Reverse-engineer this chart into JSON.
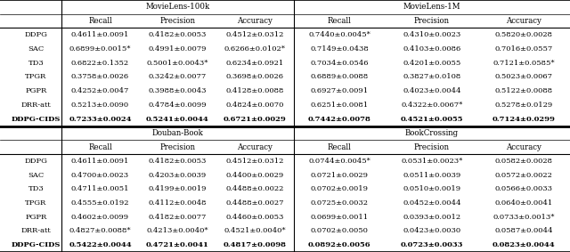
{
  "top_left_header": "MovieLens-100k",
  "top_right_header": "MovieLens-1M",
  "bottom_left_header": "Douban-Book",
  "bottom_right_header": "BookCrossing",
  "col_headers": [
    "Recall",
    "Precision",
    "Accuracy"
  ],
  "row_labels": [
    "DDPG",
    "SAC",
    "TD3",
    "TPGR",
    "PGPR",
    "DRR-att",
    "DDPG-CIDS"
  ],
  "top_left_data": [
    [
      "0.4611±0.0091",
      "0.4182±0.0053",
      "0.4512±0.0312"
    ],
    [
      "0.6899±0.0015*",
      "0.4991±0.0079",
      "0.6266±0.0102*"
    ],
    [
      "0.6822±0.1352",
      "0.5001±0.0043*",
      "0.6234±0.0921"
    ],
    [
      "0.3758±0.0026",
      "0.3242±0.0077",
      "0.3698±0.0026"
    ],
    [
      "0.4252±0.0047",
      "0.3988±0.0043",
      "0.4128±0.0088"
    ],
    [
      "0.5213±0.0090",
      "0.4784±0.0099",
      "0.4824±0.0070"
    ],
    [
      "0.7233±0.0024",
      "0.5241±0.0044",
      "0.6721±0.0029"
    ]
  ],
  "top_right_data": [
    [
      "0.7440±0.0045*",
      "0.4310±0.0023",
      "0.5820±0.0028"
    ],
    [
      "0.7149±0.0438",
      "0.4103±0.0086",
      "0.7016±0.0557"
    ],
    [
      "0.7034±0.0546",
      "0.4201±0.0055",
      "0.7121±0.0585*"
    ],
    [
      "0.6889±0.0088",
      "0.3827±0.0108",
      "0.5023±0.0067"
    ],
    [
      "0.6927±0.0091",
      "0.4023±0.0044",
      "0.5122±0.0088"
    ],
    [
      "0.6251±0.0081",
      "0.4322±0.0067*",
      "0.5278±0.0129"
    ],
    [
      "0.7442±0.0078",
      "0.4521±0.0055",
      "0.7124±0.0299"
    ]
  ],
  "bottom_left_data": [
    [
      "0.4611±0.0091",
      "0.4182±0.0053",
      "0.4512±0.0312"
    ],
    [
      "0.4700±0.0023",
      "0.4203±0.0039",
      "0.4400±0.0029"
    ],
    [
      "0.4711±0.0051",
      "0.4199±0.0019",
      "0.4488±0.0022"
    ],
    [
      "0.4555±0.0192",
      "0.4112±0.0048",
      "0.4488±0.0027"
    ],
    [
      "0.4602±0.0099",
      "0.4182±0.0077",
      "0.4460±0.0053"
    ],
    [
      "0.4827±0.0088*",
      "0.4213±0.0040*",
      "0.4521±0.0040*"
    ],
    [
      "0.5422±0.0044",
      "0.4721±0.0041",
      "0.4817±0.0098"
    ]
  ],
  "bottom_right_data": [
    [
      "0.0744±0.0045*",
      "0.0531±0.0023*",
      "0.0582±0.0028"
    ],
    [
      "0.0721±0.0029",
      "0.0511±0.0039",
      "0.0572±0.0022"
    ],
    [
      "0.0702±0.0019",
      "0.0510±0.0019",
      "0.0566±0.0033"
    ],
    [
      "0.0725±0.0032",
      "0.0452±0.0044",
      "0.0640±0.0041"
    ],
    [
      "0.0699±0.0011",
      "0.0393±0.0012",
      "0.0733±0.0013*"
    ],
    [
      "0.0702±0.0050",
      "0.0423±0.0030",
      "0.0587±0.0044"
    ],
    [
      "0.0892±0.0056",
      "0.0723±0.0033",
      "0.0823±0.0044"
    ]
  ],
  "bold_row_top_left": [
    6
  ],
  "bold_row_top_right": [
    6
  ],
  "bold_row_bottom_left": [
    6
  ],
  "bold_row_bottom_right": [
    6
  ]
}
